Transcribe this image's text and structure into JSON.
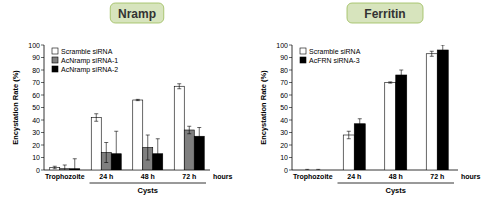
{
  "chart_data": [
    {
      "type": "bar",
      "title": "Nramp",
      "y_label": "Encystation Rate (%)",
      "x_label": "hours",
      "x_group_label": "Cysts",
      "categories": [
        "Trophozoite",
        "24 h",
        "48 h",
        "72 h"
      ],
      "series": [
        {
          "name": "Scramble siRNA",
          "color": "#ffffff",
          "values": [
            2,
            42,
            56,
            67
          ],
          "errors": [
            1,
            3,
            0.5,
            2
          ]
        },
        {
          "name": "AcNramp siRNA-1",
          "color": "#7f7f7f",
          "values": [
            1,
            14,
            18,
            32
          ],
          "errors": [
            3,
            8,
            10,
            3
          ]
        },
        {
          "name": "AcNramp siRNA-2",
          "color": "#000000",
          "values": [
            1,
            13,
            13,
            27
          ],
          "errors": [
            8,
            18,
            12,
            7
          ]
        }
      ],
      "ylim": [
        0,
        100
      ],
      "yticks": [
        0,
        10,
        20,
        30,
        40,
        50,
        60,
        70,
        80,
        90,
        100
      ],
      "legend": "upper left",
      "grid": false
    },
    {
      "type": "bar",
      "title": "Ferritin",
      "y_label": "Encystation Rate (%)",
      "x_label": "hours",
      "x_group_label": "Cysts",
      "categories": [
        "Trophozoite",
        "24 h",
        "48 h",
        "72 h"
      ],
      "series": [
        {
          "name": "Scramble siRNA",
          "color": "#ffffff",
          "values": [
            0,
            28,
            70,
            93
          ],
          "errors": [
            0.5,
            3,
            0.5,
            2
          ]
        },
        {
          "name": "AcFRN siRNA-3",
          "color": "#000000",
          "values": [
            0,
            37,
            76,
            96
          ],
          "errors": [
            0.5,
            4,
            4,
            4
          ]
        }
      ],
      "ylim": [
        0,
        100
      ],
      "yticks": [
        0,
        10,
        20,
        30,
        40,
        50,
        60,
        70,
        80,
        90,
        100
      ],
      "legend": "upper left",
      "grid": false
    }
  ]
}
